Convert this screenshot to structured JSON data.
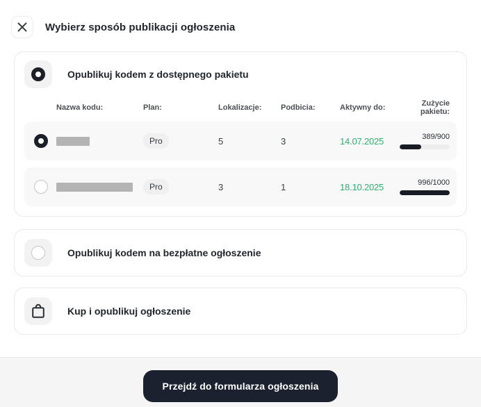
{
  "header": {
    "title": "Wybierz sposób publikacji ogłoszenia"
  },
  "icons": {
    "close": "close-icon",
    "buy": "shopping-bag-icon"
  },
  "options": {
    "package": {
      "label": "Opublikuj kodem z dostępnego pakietu",
      "selected": true,
      "table": {
        "columns": {
          "name": "Nazwa kodu:",
          "plan": "Plan:",
          "locations": "Lokalizacje:",
          "bumps": "Podbicia:",
          "active_until": "Aktywny do:",
          "usage": "Zużycie pakietu:"
        },
        "rows": [
          {
            "selected": true,
            "plan": "Pro",
            "locations": "5",
            "bumps": "3",
            "active_until": "14.07.2025",
            "usage_label": "389/900",
            "usage_percent": 43
          },
          {
            "selected": false,
            "plan": "Pro",
            "locations": "3",
            "bumps": "1",
            "active_until": "18.10.2025",
            "usage_label": "996/1000",
            "usage_percent": 99.6
          }
        ]
      }
    },
    "free": {
      "label": "Opublikuj kodem na bezpłatne ogłoszenie",
      "selected": false
    },
    "buy": {
      "label": "Kup i opublikuj ogłoszenie"
    }
  },
  "footer": {
    "submit_label": "Przejdź do formularza ogłoszenia"
  },
  "colors": {
    "accent_dark": "#1b212e",
    "date_green": "#2db36e",
    "status_date_color_note": "active dates shown in green"
  }
}
